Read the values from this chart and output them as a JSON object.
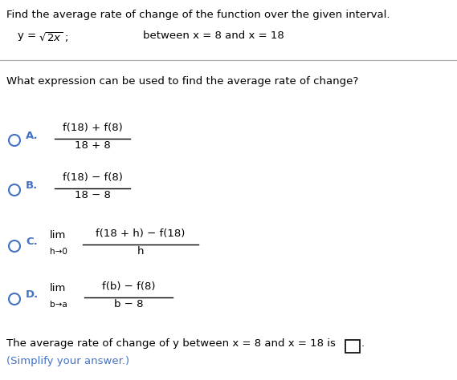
{
  "title_line": "Find the average rate of change of the function over the given interval.",
  "interval_label": "between x = 8 and x = 18",
  "question": "What expression can be used to find the average rate of change?",
  "option_A_num": "f(18) + f(8)",
  "option_A_den": "18 + 8",
  "option_B_num": "f(18) − f(8)",
  "option_B_den": "18 − 8",
  "option_C_lim": "lim",
  "option_C_sub": "h→0",
  "option_C_num": "f(18 + h) − f(18)",
  "option_C_den": "h",
  "option_D_lim": "lim",
  "option_D_sub": "b→a",
  "option_D_num": "f(b) − f(8)",
  "option_D_den": "b − 8",
  "answer_line1": "The average rate of change of y between x = 8 and x = 18 is",
  "answer_line2": "(Simplify your answer.)",
  "bg_color": "#ffffff",
  "text_color": "#000000",
  "option_color": "#4472c4",
  "answer_note_color": "#4472c4",
  "circle_color": "#4472c4",
  "divider_color": "#aaaaaa",
  "fs_main": 9.5,
  "fs_bold": 9.5,
  "fs_sub": 7.5
}
